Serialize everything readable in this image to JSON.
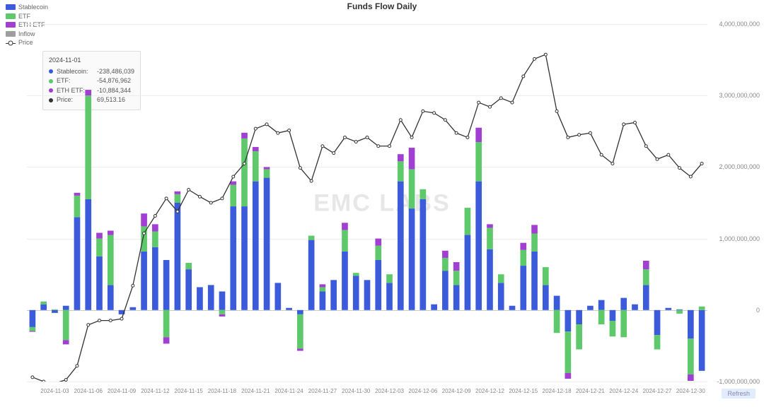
{
  "title": "Funds Flow Daily",
  "watermark": "EMC LABS",
  "refresh_label": "Refresh",
  "legend": {
    "items": [
      {
        "label": "Stablecoin",
        "color": "#3b5bdb"
      },
      {
        "label": "ETF",
        "color": "#5dc96b"
      },
      {
        "label": "ETH ETF",
        "color": "#a03fd1"
      },
      {
        "label": "Inflow",
        "color": "#9e9e9e"
      }
    ],
    "price_label": "Price"
  },
  "tooltip": {
    "date": "2024-11-01",
    "rows": [
      {
        "label": "Stablecoin:",
        "value": "-238,486,039",
        "color": "#3b5bdb"
      },
      {
        "label": "ETF:",
        "value": "-54,876,962",
        "color": "#5dc96b"
      },
      {
        "label": "ETH ETF:",
        "value": "-10,884,344",
        "color": "#a03fd1"
      },
      {
        "label": "Price:",
        "value": "69,513.16",
        "color": "#333333"
      }
    ]
  },
  "chart": {
    "type": "stacked-bar+line",
    "y_min": -1000000000,
    "y_max": 4000000000,
    "y_ticks": [
      -1000000000,
      0,
      1000000000,
      2000000000,
      3000000000,
      4000000000
    ],
    "y_tick_labels": [
      "-1,000,000,000",
      "0",
      "1,000,000,000",
      "2,000,000,000",
      "3,000,000,000",
      "4,000,000,000"
    ],
    "zero": 0,
    "price_min": 69000,
    "price_max": 110000,
    "bar_width_ratio": 0.55,
    "colors": {
      "stablecoin": "#3b5bdb",
      "etf": "#5dc96b",
      "eth_etf": "#a03fd1",
      "price_line": "#333333",
      "grid": "#eeeeee",
      "axis_text": "#888888",
      "background": "#ffffff"
    },
    "font_sizes": {
      "title": 12,
      "legend": 9,
      "axis": 9,
      "tooltip": 9
    },
    "x_tick_every": 3,
    "series": [
      {
        "date": "2024-11-01",
        "stable": -238000000,
        "etf": -55000000,
        "eth": -11000000,
        "price": 69500
      },
      {
        "date": "2024-11-02",
        "stable": 80000000,
        "etf": 40000000,
        "eth": 0,
        "price": 69000
      },
      {
        "date": "2024-11-03",
        "stable": -40000000,
        "etf": 10000000,
        "eth": 0,
        "price": 68800
      },
      {
        "date": "2024-11-04",
        "stable": 60000000,
        "etf": -420000000,
        "eth": -60000000,
        "price": 69200
      },
      {
        "date": "2024-11-05",
        "stable": 1300000000,
        "etf": 300000000,
        "eth": 40000000,
        "price": 70800
      },
      {
        "date": "2024-11-06",
        "stable": 1550000000,
        "etf": 1450000000,
        "eth": 80000000,
        "price": 75500
      },
      {
        "date": "2024-11-07",
        "stable": 750000000,
        "etf": 250000000,
        "eth": 80000000,
        "price": 76000
      },
      {
        "date": "2024-11-08",
        "stable": 350000000,
        "etf": 700000000,
        "eth": 60000000,
        "price": 76000
      },
      {
        "date": "2024-11-09",
        "stable": -60000000,
        "etf": 0,
        "eth": 0,
        "price": 76200
      },
      {
        "date": "2024-11-10",
        "stable": 40000000,
        "etf": 0,
        "eth": 0,
        "price": 80000
      },
      {
        "date": "2024-11-11",
        "stable": 820000000,
        "etf": 350000000,
        "eth": 180000000,
        "price": 86000
      },
      {
        "date": "2024-11-12",
        "stable": 880000000,
        "etf": 220000000,
        "eth": 100000000,
        "price": 88000
      },
      {
        "date": "2024-11-13",
        "stable": 700000000,
        "etf": -380000000,
        "eth": -90000000,
        "price": 90000
      },
      {
        "date": "2024-11-14",
        "stable": 1500000000,
        "etf": 120000000,
        "eth": 40000000,
        "price": 88500
      },
      {
        "date": "2024-11-15",
        "stable": 570000000,
        "etf": 90000000,
        "eth": 0,
        "price": 91000
      },
      {
        "date": "2024-11-16",
        "stable": 320000000,
        "etf": 0,
        "eth": 0,
        "price": 90200
      },
      {
        "date": "2024-11-17",
        "stable": 350000000,
        "etf": 0,
        "eth": 0,
        "price": 89500
      },
      {
        "date": "2024-11-18",
        "stable": 260000000,
        "etf": -60000000,
        "eth": -30000000,
        "price": 90000
      },
      {
        "date": "2024-11-19",
        "stable": 1450000000,
        "etf": 300000000,
        "eth": 50000000,
        "price": 92500
      },
      {
        "date": "2024-11-20",
        "stable": 1450000000,
        "etf": 950000000,
        "eth": 80000000,
        "price": 94000
      },
      {
        "date": "2024-11-21",
        "stable": 1800000000,
        "etf": 420000000,
        "eth": 60000000,
        "price": 98000
      },
      {
        "date": "2024-11-22",
        "stable": 1850000000,
        "etf": 120000000,
        "eth": 30000000,
        "price": 98500
      },
      {
        "date": "2024-11-23",
        "stable": 380000000,
        "etf": 0,
        "eth": 0,
        "price": 97500
      },
      {
        "date": "2024-11-24",
        "stable": 30000000,
        "etf": 0,
        "eth": 0,
        "price": 97800
      },
      {
        "date": "2024-11-25",
        "stable": -60000000,
        "etf": -480000000,
        "eth": -30000000,
        "price": 93500
      },
      {
        "date": "2024-11-26",
        "stable": 980000000,
        "etf": 60000000,
        "eth": 0,
        "price": 92000
      },
      {
        "date": "2024-11-27",
        "stable": 260000000,
        "etf": 60000000,
        "eth": 40000000,
        "price": 96000
      },
      {
        "date": "2024-11-28",
        "stable": 420000000,
        "etf": 0,
        "eth": 0,
        "price": 95200
      },
      {
        "date": "2024-11-29",
        "stable": 820000000,
        "etf": 300000000,
        "eth": 100000000,
        "price": 97000
      },
      {
        "date": "2024-11-30",
        "stable": 480000000,
        "etf": 40000000,
        "eth": 0,
        "price": 96500
      },
      {
        "date": "2024-12-01",
        "stable": 420000000,
        "etf": 0,
        "eth": 0,
        "price": 97000
      },
      {
        "date": "2024-12-02",
        "stable": 700000000,
        "etf": 200000000,
        "eth": 100000000,
        "price": 96000
      },
      {
        "date": "2024-12-03",
        "stable": 380000000,
        "etf": 120000000,
        "eth": 0,
        "price": 96000
      },
      {
        "date": "2024-12-04",
        "stable": 1800000000,
        "etf": 280000000,
        "eth": 100000000,
        "price": 99000
      },
      {
        "date": "2024-12-05",
        "stable": 1420000000,
        "etf": 550000000,
        "eth": 300000000,
        "price": 97000
      },
      {
        "date": "2024-12-06",
        "stable": 1550000000,
        "etf": 140000000,
        "eth": 0,
        "price": 100000
      },
      {
        "date": "2024-12-07",
        "stable": 80000000,
        "etf": 0,
        "eth": 0,
        "price": 99800
      },
      {
        "date": "2024-12-08",
        "stable": 550000000,
        "etf": 180000000,
        "eth": 100000000,
        "price": 99000
      },
      {
        "date": "2024-12-09",
        "stable": 350000000,
        "etf": 200000000,
        "eth": 120000000,
        "price": 97500
      },
      {
        "date": "2024-12-10",
        "stable": 1050000000,
        "etf": 380000000,
        "eth": 0,
        "price": 97000
      },
      {
        "date": "2024-12-11",
        "stable": 1800000000,
        "etf": 550000000,
        "eth": 200000000,
        "price": 101000
      },
      {
        "date": "2024-12-12",
        "stable": 850000000,
        "etf": 300000000,
        "eth": 50000000,
        "price": 100500
      },
      {
        "date": "2024-12-13",
        "stable": 380000000,
        "etf": 120000000,
        "eth": 0,
        "price": 101500
      },
      {
        "date": "2024-12-14",
        "stable": 60000000,
        "etf": 0,
        "eth": 0,
        "price": 101000
      },
      {
        "date": "2024-12-15",
        "stable": 620000000,
        "etf": 220000000,
        "eth": 100000000,
        "price": 104000
      },
      {
        "date": "2024-12-16",
        "stable": 820000000,
        "etf": 250000000,
        "eth": 120000000,
        "price": 106000
      },
      {
        "date": "2024-12-17",
        "stable": 350000000,
        "etf": 250000000,
        "eth": 0,
        "price": 106500
      },
      {
        "date": "2024-12-18",
        "stable": 200000000,
        "etf": -320000000,
        "eth": 0,
        "price": 100000
      },
      {
        "date": "2024-12-19",
        "stable": -300000000,
        "etf": -580000000,
        "eth": -80000000,
        "price": 97000
      },
      {
        "date": "2024-12-20",
        "stable": -200000000,
        "etf": -350000000,
        "eth": 0,
        "price": 97300
      },
      {
        "date": "2024-12-21",
        "stable": 60000000,
        "etf": 0,
        "eth": 0,
        "price": 97500
      },
      {
        "date": "2024-12-22",
        "stable": 140000000,
        "etf": -200000000,
        "eth": 0,
        "price": 95000
      },
      {
        "date": "2024-12-23",
        "stable": -150000000,
        "etf": -220000000,
        "eth": 0,
        "price": 94000
      },
      {
        "date": "2024-12-24",
        "stable": 170000000,
        "etf": -380000000,
        "eth": 0,
        "price": 98500
      },
      {
        "date": "2024-12-25",
        "stable": 80000000,
        "etf": 0,
        "eth": 0,
        "price": 98700
      },
      {
        "date": "2024-12-26",
        "stable": 350000000,
        "etf": 220000000,
        "eth": 120000000,
        "price": 96000
      },
      {
        "date": "2024-12-27",
        "stable": -350000000,
        "etf": -200000000,
        "eth": 0,
        "price": 94500
      },
      {
        "date": "2024-12-28",
        "stable": 30000000,
        "etf": 0,
        "eth": 0,
        "price": 95000
      },
      {
        "date": "2024-12-29",
        "stable": 10000000,
        "etf": -50000000,
        "eth": 0,
        "price": 93500
      },
      {
        "date": "2024-12-30",
        "stable": -400000000,
        "etf": -500000000,
        "eth": -90000000,
        "price": 92500
      },
      {
        "date": "2024-12-31",
        "stable": -850000000,
        "etf": 50000000,
        "eth": 0,
        "price": 94000
      }
    ]
  }
}
